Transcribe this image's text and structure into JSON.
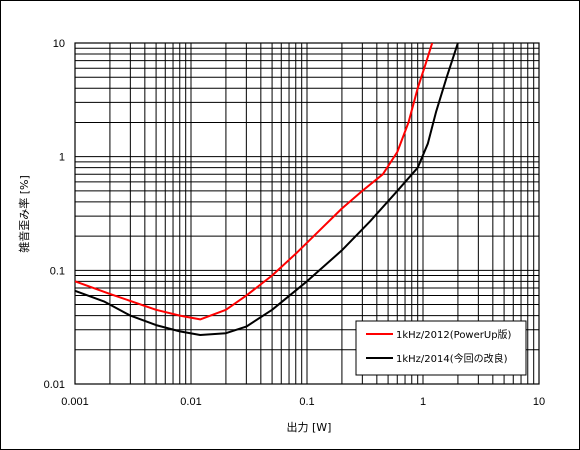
{
  "chart_data": {
    "type": "line",
    "title": "",
    "xlabel": "出力 [W]",
    "ylabel": "雑音歪み率 [%]",
    "x_scale": "log",
    "y_scale": "log",
    "xlim": [
      0.001,
      10
    ],
    "ylim": [
      0.01,
      10
    ],
    "grid": true,
    "legend_position": "bottom-right",
    "x_tick_labels": [
      "0.001",
      "0.01",
      "0.1",
      "1",
      "10"
    ],
    "y_tick_labels": [
      "0.01",
      "0.1",
      "1",
      "10"
    ],
    "series": [
      {
        "name": "1kHz/2012(PowerUp版)",
        "color": "#ff0000",
        "x": [
          0.001,
          0.002,
          0.005,
          0.008,
          0.012,
          0.02,
          0.03,
          0.05,
          0.08,
          0.12,
          0.2,
          0.3,
          0.45,
          0.6,
          0.75,
          0.9,
          1.05,
          1.2
        ],
        "y": [
          0.08,
          0.062,
          0.045,
          0.04,
          0.037,
          0.045,
          0.06,
          0.09,
          0.14,
          0.21,
          0.35,
          0.5,
          0.7,
          1.1,
          2.0,
          4.0,
          6.5,
          10
        ]
      },
      {
        "name": "1kHz/2014(今回の改良)",
        "color": "#000000",
        "x": [
          0.001,
          0.0018,
          0.003,
          0.005,
          0.008,
          0.012,
          0.02,
          0.03,
          0.05,
          0.1,
          0.2,
          0.35,
          0.6,
          0.9,
          1.1,
          1.3,
          1.6,
          2.0,
          2.2
        ],
        "y": [
          0.066,
          0.053,
          0.04,
          0.033,
          0.029,
          0.027,
          0.028,
          0.032,
          0.045,
          0.08,
          0.15,
          0.27,
          0.5,
          0.8,
          1.3,
          2.5,
          5.0,
          10,
          12
        ]
      }
    ]
  }
}
